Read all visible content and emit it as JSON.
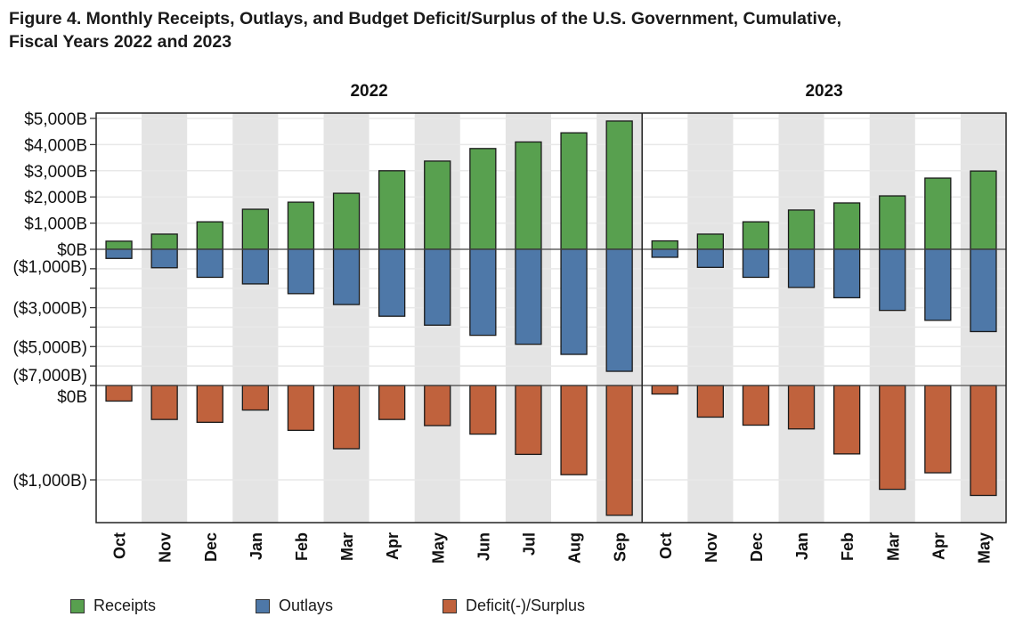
{
  "title_line1": "Figure 4. Monthly Receipts, Outlays, and Budget Deficit/Surplus of the U.S. Government, Cumulative,",
  "title_line2": "Fiscal Years 2022 and 2023",
  "colors": {
    "receipts": "#58A04F",
    "outlays": "#4E78A8",
    "deficit": "#C0623D",
    "band": "#E4E4E4",
    "grid": "#E8E8E8",
    "axis": "#222222"
  },
  "legend": [
    {
      "key": "receipts",
      "label": "Receipts"
    },
    {
      "key": "outlays",
      "label": "Outlays"
    },
    {
      "key": "deficit",
      "label": "Deficit(-)/Surplus"
    }
  ],
  "chart_data": {
    "type": "bar",
    "title": "Figure 4. Monthly Receipts, Outlays, and Budget Deficit/Surplus of the U.S. Government, Cumulative, Fiscal Years 2022 and 2023",
    "xlabel": "",
    "ylabel": "",
    "unit": "billions of dollars",
    "grid": true,
    "legend_position": "bottom",
    "panels_by_year": [
      {
        "year": "2022",
        "categories": [
          "Oct",
          "Nov",
          "Dec",
          "Jan",
          "Feb",
          "Mar",
          "Apr",
          "May",
          "Jun",
          "Jul",
          "Aug",
          "Sep"
        ]
      },
      {
        "year": "2023",
        "categories": [
          "Oct",
          "Nov",
          "Dec",
          "Jan",
          "Feb",
          "Mar",
          "Apr",
          "May"
        ]
      }
    ],
    "upper_pane": {
      "y_ticks": [
        {
          "value": 5000,
          "label": "$5,000B"
        },
        {
          "value": 4000,
          "label": "$4,000B"
        },
        {
          "value": 3000,
          "label": "$3,000B"
        },
        {
          "value": 2000,
          "label": "$2,000B"
        },
        {
          "value": 1000,
          "label": "$1,000B"
        },
        {
          "value": 0,
          "label": "$0B"
        },
        {
          "value": -1000,
          "label": "($1,000B)"
        },
        {
          "value": -2000,
          "label": ""
        },
        {
          "value": -3000,
          "label": "($3,000B)"
        },
        {
          "value": -4000,
          "label": ""
        },
        {
          "value": -5000,
          "label": "($5,000B)"
        },
        {
          "value": -6000,
          "label": ""
        },
        {
          "value": -7000,
          "label": "($7,000B)"
        }
      ],
      "ylim": [
        -7000,
        5200
      ]
    },
    "lower_pane": {
      "y_ticks": [
        {
          "value": 0,
          "label": "$0B"
        },
        {
          "value": -1000,
          "label": "($1,000B)"
        }
      ],
      "ylim": [
        -1450,
        0
      ]
    },
    "series": [
      {
        "name": "Receipts",
        "key": "receipts",
        "values_2022": [
          310,
          580,
          1050,
          1530,
          1800,
          2140,
          3000,
          3370,
          3850,
          4100,
          4450,
          4900
        ],
        "values_2023": [
          320,
          580,
          1050,
          1500,
          1770,
          2040,
          2720,
          2990
        ]
      },
      {
        "name": "Outlays",
        "key": "outlays",
        "values_2022": [
          -470,
          -950,
          -1440,
          -1780,
          -2280,
          -2840,
          -3440,
          -3900,
          -4420,
          -4880,
          -5400,
          -6270
        ],
        "values_2023": [
          -410,
          -930,
          -1440,
          -1960,
          -2490,
          -3140,
          -3650,
          -4230
        ]
      },
      {
        "name": "Deficit(-)/Surplus",
        "key": "deficit",
        "values_2022": [
          -165,
          -360,
          -390,
          -260,
          -475,
          -670,
          -360,
          -425,
          -515,
          -730,
          -945,
          -1375
        ],
        "values_2023": [
          -90,
          -335,
          -420,
          -460,
          -725,
          -1100,
          -925,
          -1165
        ]
      }
    ]
  }
}
